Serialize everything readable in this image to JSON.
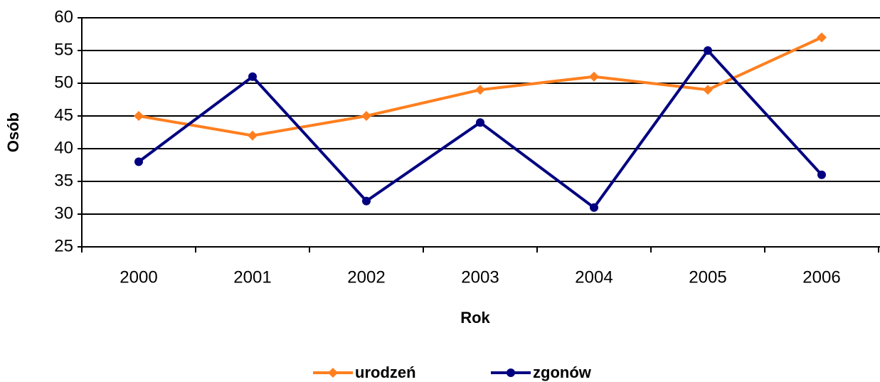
{
  "chart_data": {
    "type": "line",
    "x_label": "Rok",
    "y_label": "Osób",
    "categories": [
      "2000",
      "2001",
      "2002",
      "2003",
      "2004",
      "2005",
      "2006"
    ],
    "series": [
      {
        "name": "urodzeń",
        "color": "#ff7f1f",
        "marker": "diamond",
        "values": [
          45,
          42,
          45,
          49,
          51,
          49,
          57
        ]
      },
      {
        "name": "zgonów",
        "color": "#000080",
        "marker": "circle",
        "values": [
          38,
          51,
          32,
          44,
          31,
          55,
          36
        ]
      }
    ],
    "ylim": [
      25,
      60
    ],
    "yticks": [
      25,
      30,
      35,
      40,
      45,
      50,
      55,
      60
    ],
    "grid": true,
    "legend": "bottom"
  }
}
